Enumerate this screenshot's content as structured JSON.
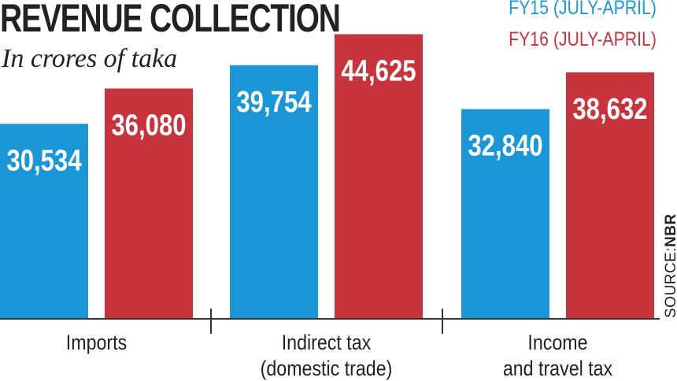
{
  "title": "REVENUE COLLECTION",
  "subtitle": "In crores of taka",
  "source_prefix": "SOURCE:",
  "source_name": "NBR",
  "colors": {
    "fy15": "#1b96d6",
    "fy16": "#c7343b",
    "text": "#222222"
  },
  "chart_data": {
    "type": "bar",
    "title": "REVENUE COLLECTION",
    "subtitle": "In crores of taka",
    "categories": [
      [
        "Imports"
      ],
      [
        "Indirect tax",
        "(domestic trade)"
      ],
      [
        "Income",
        "and travel tax"
      ]
    ],
    "series": [
      {
        "name": "FY15 (JULY-APRIL)",
        "values": [
          30534,
          39754,
          32840
        ],
        "labels": [
          "30,534",
          "39,754",
          "32,840"
        ]
      },
      {
        "name": "FY16 (JULY-APRIL)",
        "values": [
          36080,
          44625,
          38632
        ],
        "labels": [
          "36,080",
          "44,625",
          "38,632"
        ]
      }
    ],
    "ylim": [
      0,
      50000
    ],
    "grid": false,
    "legend": "top-right"
  }
}
